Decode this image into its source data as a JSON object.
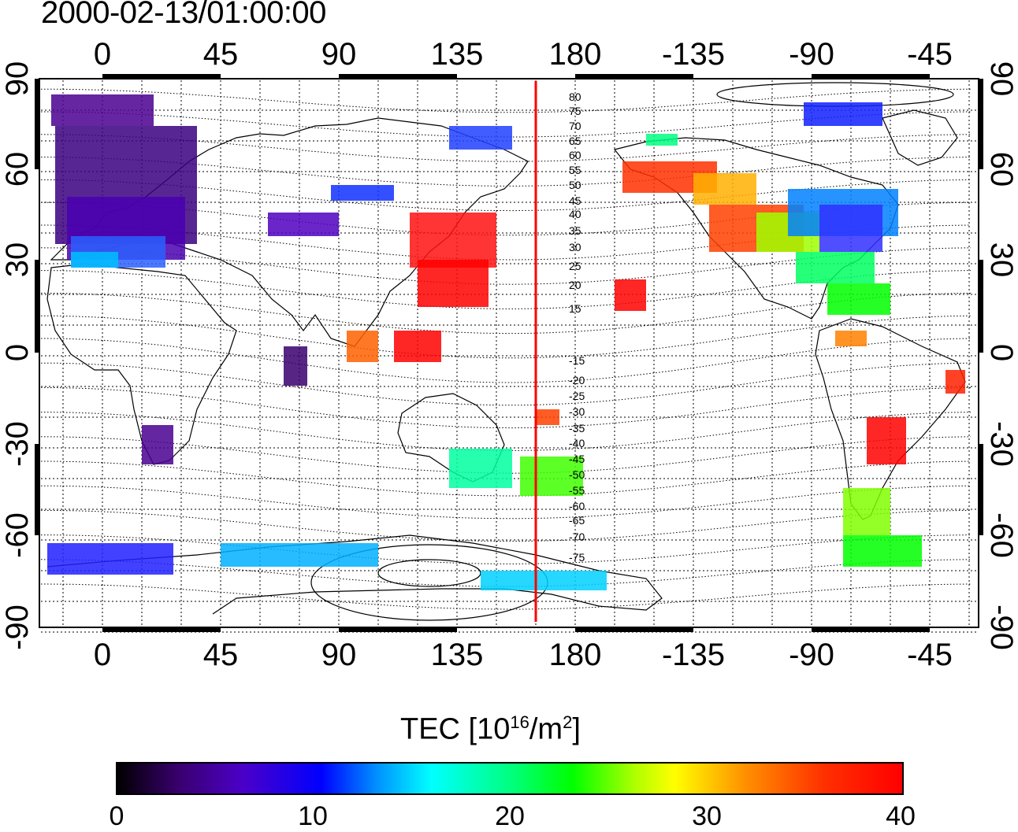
{
  "title": "2000-02-13/01:00:00",
  "x_tick_labels": [
    "0",
    "45",
    "90",
    "135",
    "180",
    "-135",
    "-90",
    "-45"
  ],
  "y_tick_labels": [
    "90",
    "60",
    "30",
    "0",
    "-30",
    "-60",
    "-90"
  ],
  "contour_labels": [
    "80",
    "75",
    "70",
    "65",
    "60",
    "55",
    "50",
    "45",
    "40",
    "35",
    "30",
    "25",
    "20",
    "15",
    "-15",
    "-20",
    "-25",
    "-30",
    "-35",
    "-40",
    "-45",
    "-50",
    "-55",
    "-60",
    "-65",
    "-70",
    "-75"
  ],
  "colorbar": {
    "title_main": "TEC  [10",
    "title_exp": "16",
    "title_mid": "/m",
    "title_exp2": "2",
    "title_end": "]",
    "ticks": [
      "0",
      "10",
      "20",
      "30",
      "40"
    ],
    "colors": [
      "#000000",
      "#0000ff",
      "#00ffff",
      "#00ff00",
      "#ffff00",
      "#ff0000"
    ]
  },
  "colors": {
    "meridian_line": "#ff0000",
    "frame": "#000000"
  }
}
